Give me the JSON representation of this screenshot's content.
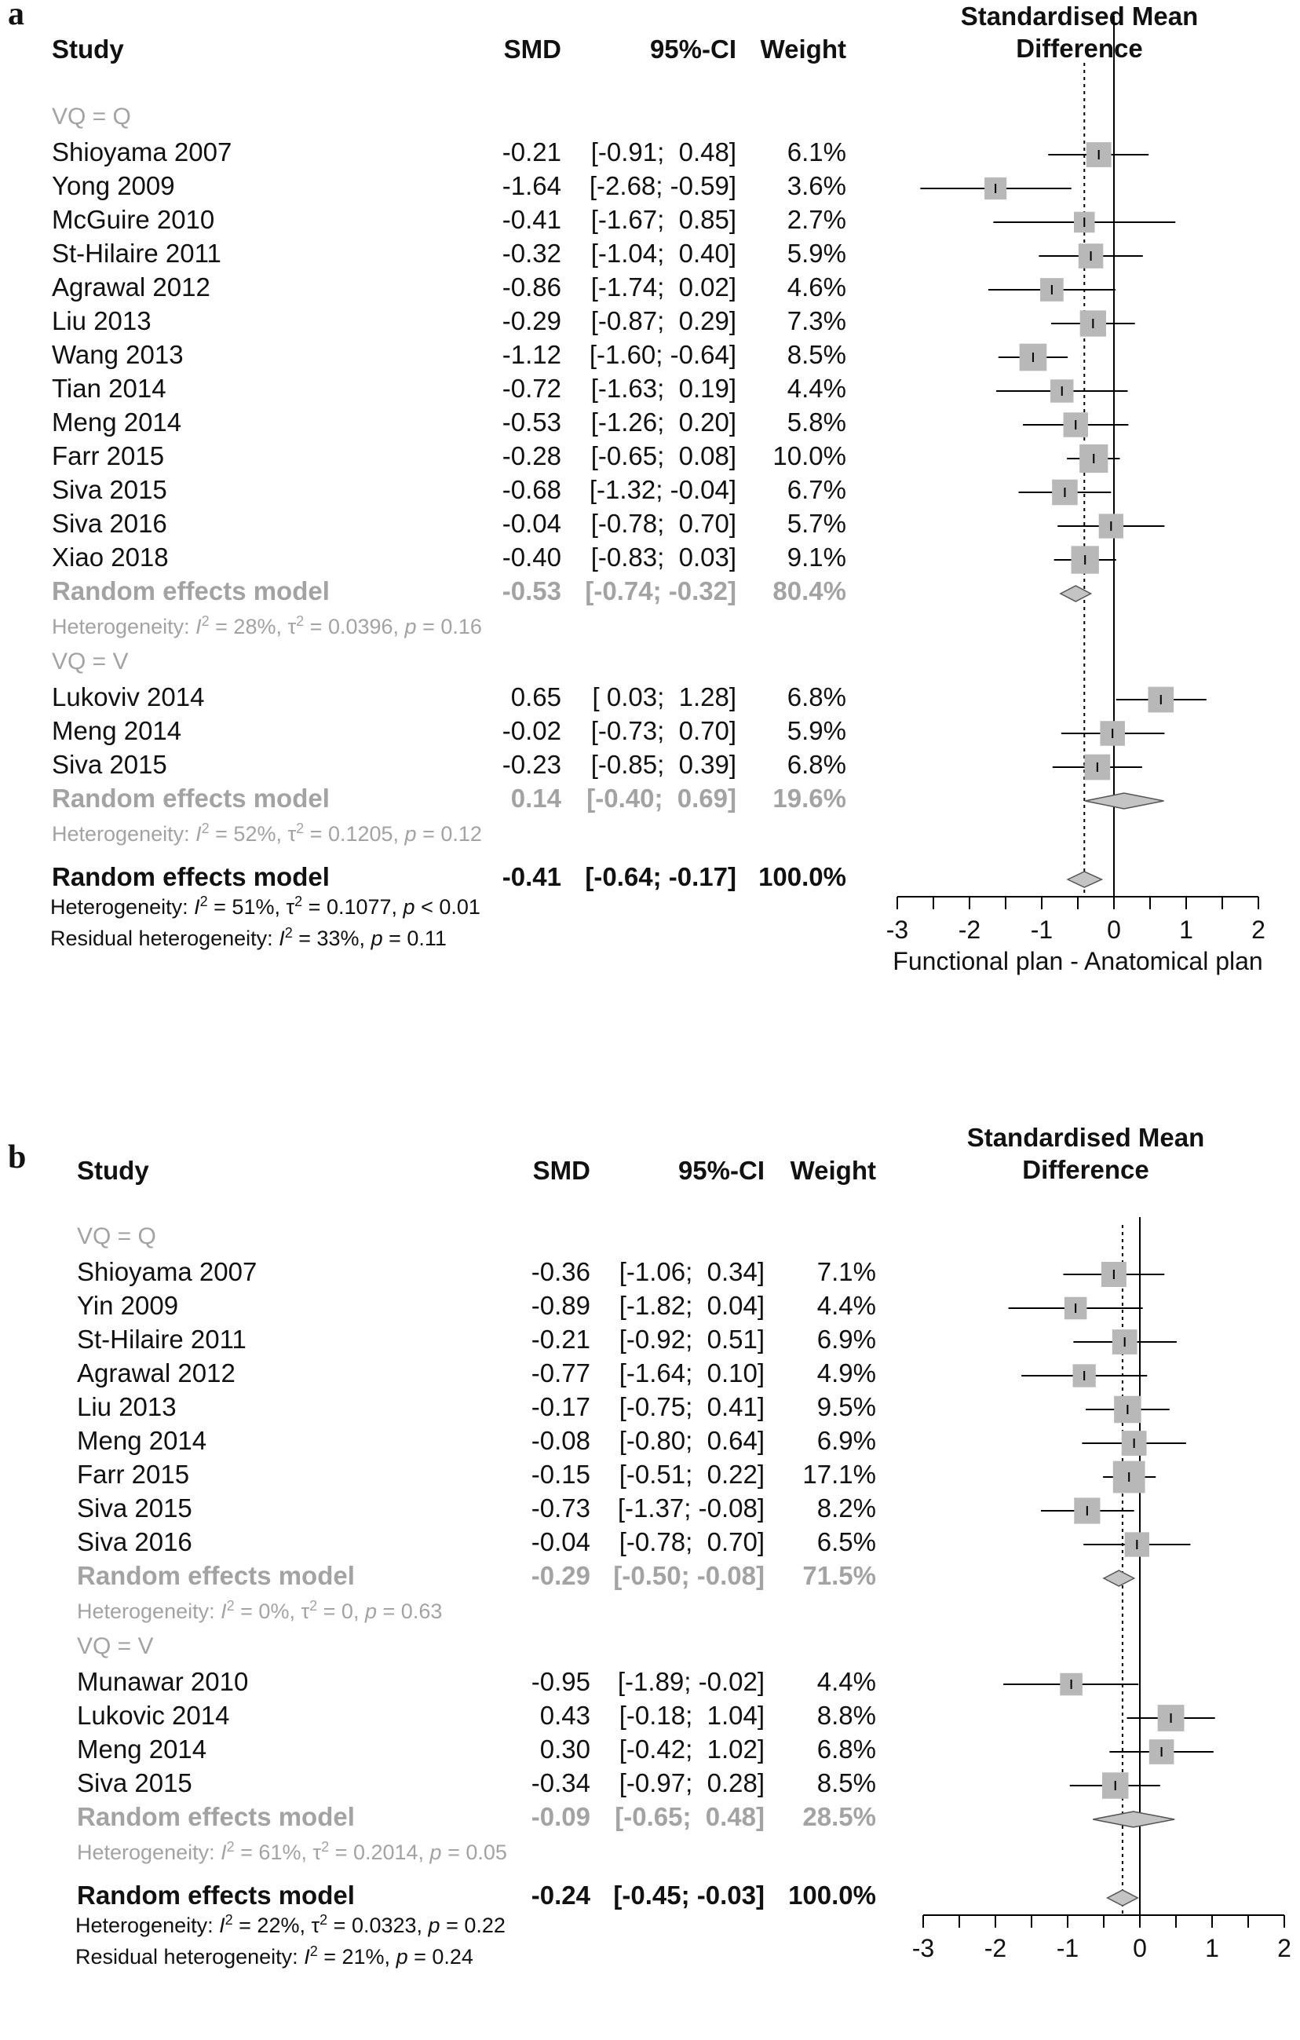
{
  "chart_data": [
    {
      "type": "forest",
      "panel": "a",
      "title": "Standardised Mean\nDifference",
      "xlabel": "Functional plan - Anatomical plan",
      "xlim": [
        -3,
        2
      ],
      "xticks": [
        "-3",
        "-2",
        "-1",
        "0",
        "1",
        "2"
      ],
      "reference_line": 0,
      "pooled_line": -0.41,
      "columns": {
        "study": "Study",
        "smd": "SMD",
        "ci": "95%-CI",
        "weight": "Weight"
      },
      "groups": [
        {
          "label": "VQ = Q",
          "studies": [
            {
              "study": "Shioyama 2007",
              "smd": -0.21,
              "lo": -0.91,
              "hi": 0.48,
              "smd_text": "-0.21",
              "ci_text": "[-0.91;  0.48]",
              "weight_text": "6.1%",
              "weight": 6.1
            },
            {
              "study": "Yong 2009",
              "smd": -1.64,
              "lo": -2.68,
              "hi": -0.59,
              "smd_text": "-1.64",
              "ci_text": "[-2.68; -0.59]",
              "weight_text": "3.6%",
              "weight": 3.6
            },
            {
              "study": "McGuire 2010",
              "smd": -0.41,
              "lo": -1.67,
              "hi": 0.85,
              "smd_text": "-0.41",
              "ci_text": "[-1.67;  0.85]",
              "weight_text": "2.7%",
              "weight": 2.7
            },
            {
              "study": "St-Hilaire 2011",
              "smd": -0.32,
              "lo": -1.04,
              "hi": 0.4,
              "smd_text": "-0.32",
              "ci_text": "[-1.04;  0.40]",
              "weight_text": "5.9%",
              "weight": 5.9
            },
            {
              "study": "Agrawal 2012",
              "smd": -0.86,
              "lo": -1.74,
              "hi": 0.02,
              "smd_text": "-0.86",
              "ci_text": "[-1.74;  0.02]",
              "weight_text": "4.6%",
              "weight": 4.6
            },
            {
              "study": "Liu 2013",
              "smd": -0.29,
              "lo": -0.87,
              "hi": 0.29,
              "smd_text": "-0.29",
              "ci_text": "[-0.87;  0.29]",
              "weight_text": "7.3%",
              "weight": 7.3
            },
            {
              "study": "Wang 2013",
              "smd": -1.12,
              "lo": -1.6,
              "hi": -0.64,
              "smd_text": "-1.12",
              "ci_text": "[-1.60; -0.64]",
              "weight_text": "8.5%",
              "weight": 8.5
            },
            {
              "study": "Tian 2014",
              "smd": -0.72,
              "lo": -1.63,
              "hi": 0.19,
              "smd_text": "-0.72",
              "ci_text": "[-1.63;  0.19]",
              "weight_text": "4.4%",
              "weight": 4.4
            },
            {
              "study": "Meng 2014",
              "smd": -0.53,
              "lo": -1.26,
              "hi": 0.2,
              "smd_text": "-0.53",
              "ci_text": "[-1.26;  0.20]",
              "weight_text": "5.8%",
              "weight": 5.8
            },
            {
              "study": "Farr 2015",
              "smd": -0.28,
              "lo": -0.65,
              "hi": 0.08,
              "smd_text": "-0.28",
              "ci_text": "[-0.65;  0.08]",
              "weight_text": "10.0%",
              "weight": 10.0
            },
            {
              "study": "Siva 2015",
              "smd": -0.68,
              "lo": -1.32,
              "hi": -0.04,
              "smd_text": "-0.68",
              "ci_text": "[-1.32; -0.04]",
              "weight_text": "6.7%",
              "weight": 6.7
            },
            {
              "study": "Siva 2016",
              "smd": -0.04,
              "lo": -0.78,
              "hi": 0.7,
              "smd_text": "-0.04",
              "ci_text": "[-0.78;  0.70]",
              "weight_text": "5.7%",
              "weight": 5.7
            },
            {
              "study": "Xiao 2018",
              "smd": -0.4,
              "lo": -0.83,
              "hi": 0.03,
              "smd_text": "-0.40",
              "ci_text": "[-0.83;  0.03]",
              "weight_text": "9.1%",
              "weight": 9.1
            }
          ],
          "pooled": {
            "label": "Random effects model",
            "smd": -0.53,
            "lo": -0.74,
            "hi": -0.32,
            "smd_text": "-0.53",
            "ci_text": "[-0.74; -0.32]",
            "weight_text": "80.4%"
          },
          "heterogeneity": {
            "prefix": "Heterogeneity: ",
            "i2": "28%",
            "tau2": "0.0396",
            "p_op": "=",
            "p": "0.16"
          }
        },
        {
          "label": "VQ = V",
          "studies": [
            {
              "study": "Lukoviv 2014",
              "smd": 0.65,
              "lo": 0.03,
              "hi": 1.28,
              "smd_text": "0.65",
              "ci_text": "[ 0.03;  1.28]",
              "weight_text": "6.8%",
              "weight": 6.8
            },
            {
              "study": "Meng 2014",
              "smd": -0.02,
              "lo": -0.73,
              "hi": 0.7,
              "smd_text": "-0.02",
              "ci_text": "[-0.73;  0.70]",
              "weight_text": "5.9%",
              "weight": 5.9
            },
            {
              "study": "Siva 2015",
              "smd": -0.23,
              "lo": -0.85,
              "hi": 0.39,
              "smd_text": "-0.23",
              "ci_text": "[-0.85;  0.39]",
              "weight_text": "6.8%",
              "weight": 6.8
            }
          ],
          "pooled": {
            "label": "Random effects model",
            "smd": 0.14,
            "lo": -0.4,
            "hi": 0.69,
            "smd_text": "0.14",
            "ci_text": "[-0.40;  0.69]",
            "weight_text": "19.6%"
          },
          "heterogeneity": {
            "prefix": "Heterogeneity: ",
            "i2": "52%",
            "tau2": "0.1205",
            "p_op": "=",
            "p": "0.12"
          }
        }
      ],
      "overall": {
        "label": "Random effects model",
        "smd": -0.41,
        "lo": -0.64,
        "hi": -0.17,
        "smd_text": "-0.41",
        "ci_text": "[-0.64; -0.17]",
        "weight_text": "100.0%"
      },
      "overall_heterogeneity": {
        "prefix": "Heterogeneity: ",
        "i2": "51%",
        "tau2": "0.1077",
        "p_op": "<",
        "p": "0.01"
      },
      "residual_heterogeneity": {
        "prefix": "Residual heterogeneity: ",
        "i2": "33%",
        "p_op": "=",
        "p": "0.11"
      }
    },
    {
      "type": "forest",
      "panel": "b",
      "title": "Standardised Mean\nDifference",
      "xlabel": "",
      "xlim": [
        -3,
        2
      ],
      "xticks": [
        "-3",
        "-2",
        "-1",
        "0",
        "1",
        "2"
      ],
      "reference_line": 0,
      "pooled_line": -0.24,
      "columns": {
        "study": "Study",
        "smd": "SMD",
        "ci": "95%-CI",
        "weight": "Weight"
      },
      "groups": [
        {
          "label": "VQ = Q",
          "studies": [
            {
              "study": "Shioyama 2007",
              "smd": -0.36,
              "lo": -1.06,
              "hi": 0.34,
              "smd_text": "-0.36",
              "ci_text": "[-1.06;  0.34]",
              "weight_text": "7.1%",
              "weight": 7.1
            },
            {
              "study": "Yin 2009",
              "smd": -0.89,
              "lo": -1.82,
              "hi": 0.04,
              "smd_text": "-0.89",
              "ci_text": "[-1.82;  0.04]",
              "weight_text": "4.4%",
              "weight": 4.4
            },
            {
              "study": "St-Hilaire 2011",
              "smd": -0.21,
              "lo": -0.92,
              "hi": 0.51,
              "smd_text": "-0.21",
              "ci_text": "[-0.92;  0.51]",
              "weight_text": "6.9%",
              "weight": 6.9
            },
            {
              "study": "Agrawal 2012",
              "smd": -0.77,
              "lo": -1.64,
              "hi": 0.1,
              "smd_text": "-0.77",
              "ci_text": "[-1.64;  0.10]",
              "weight_text": "4.9%",
              "weight": 4.9
            },
            {
              "study": "Liu 2013",
              "smd": -0.17,
              "lo": -0.75,
              "hi": 0.41,
              "smd_text": "-0.17",
              "ci_text": "[-0.75;  0.41]",
              "weight_text": "9.5%",
              "weight": 9.5
            },
            {
              "study": "Meng 2014",
              "smd": -0.08,
              "lo": -0.8,
              "hi": 0.64,
              "smd_text": "-0.08",
              "ci_text": "[-0.80;  0.64]",
              "weight_text": "6.9%",
              "weight": 6.9
            },
            {
              "study": "Farr 2015",
              "smd": -0.15,
              "lo": -0.51,
              "hi": 0.22,
              "smd_text": "-0.15",
              "ci_text": "[-0.51;  0.22]",
              "weight_text": "17.1%",
              "weight": 17.1
            },
            {
              "study": "Siva 2015",
              "smd": -0.73,
              "lo": -1.37,
              "hi": -0.08,
              "smd_text": "-0.73",
              "ci_text": "[-1.37; -0.08]",
              "weight_text": "8.2%",
              "weight": 8.2
            },
            {
              "study": "Siva 2016",
              "smd": -0.04,
              "lo": -0.78,
              "hi": 0.7,
              "smd_text": "-0.04",
              "ci_text": "[-0.78;  0.70]",
              "weight_text": "6.5%",
              "weight": 6.5
            }
          ],
          "pooled": {
            "label": "Random effects model",
            "smd": -0.29,
            "lo": -0.5,
            "hi": -0.08,
            "smd_text": "-0.29",
            "ci_text": "[-0.50; -0.08]",
            "weight_text": "71.5%"
          },
          "heterogeneity": {
            "prefix": "Heterogeneity: ",
            "i2": "0%",
            "tau2": "0",
            "p_op": "=",
            "p": "0.63"
          }
        },
        {
          "label": "VQ = V",
          "studies": [
            {
              "study": "Munawar 2010",
              "smd": -0.95,
              "lo": -1.89,
              "hi": -0.02,
              "smd_text": "-0.95",
              "ci_text": "[-1.89; -0.02]",
              "weight_text": "4.4%",
              "weight": 4.4
            },
            {
              "study": "Lukovic 2014",
              "smd": 0.43,
              "lo": -0.18,
              "hi": 1.04,
              "smd_text": "0.43",
              "ci_text": "[-0.18;  1.04]",
              "weight_text": "8.8%",
              "weight": 8.8
            },
            {
              "study": "Meng 2014",
              "smd": 0.3,
              "lo": -0.42,
              "hi": 1.02,
              "smd_text": "0.30",
              "ci_text": "[-0.42;  1.02]",
              "weight_text": "6.8%",
              "weight": 6.8
            },
            {
              "study": "Siva 2015",
              "smd": -0.34,
              "lo": -0.97,
              "hi": 0.28,
              "smd_text": "-0.34",
              "ci_text": "[-0.97;  0.28]",
              "weight_text": "8.5%",
              "weight": 8.5
            }
          ],
          "pooled": {
            "label": "Random effects model",
            "smd": -0.09,
            "lo": -0.65,
            "hi": 0.48,
            "smd_text": "-0.09",
            "ci_text": "[-0.65;  0.48]",
            "weight_text": "28.5%"
          },
          "heterogeneity": {
            "prefix": "Heterogeneity: ",
            "i2": "61%",
            "tau2": "0.2014",
            "p_op": "=",
            "p": "0.05"
          }
        }
      ],
      "overall": {
        "label": "Random effects model",
        "smd": -0.24,
        "lo": -0.45,
        "hi": -0.03,
        "smd_text": "-0.24",
        "ci_text": "[-0.45; -0.03]",
        "weight_text": "100.0%"
      },
      "overall_heterogeneity": {
        "prefix": "Heterogeneity: ",
        "i2": "22%",
        "tau2": "0.0323",
        "p_op": "=",
        "p": "0.22"
      },
      "residual_heterogeneity": {
        "prefix": "Residual heterogeneity: ",
        "i2": "21%",
        "p_op": "=",
        "p": "0.24"
      }
    }
  ],
  "panels": {
    "a": "a",
    "b": "b"
  },
  "colors": {
    "text": "#111111",
    "subgroup": "#a3a3a3",
    "box": "#b8b8b8",
    "diamond": "#c4c4c4",
    "line": "#000000"
  }
}
